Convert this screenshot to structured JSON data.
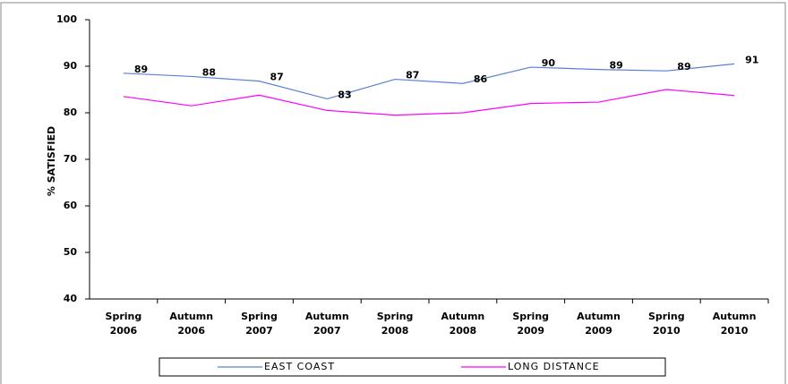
{
  "chart_data": {
    "type": "line",
    "y_label": "% SATISFIED",
    "categories": [
      "Spring 2006",
      "Autumn 2006",
      "Spring 2007",
      "Autumn 2007",
      "Spring 2008",
      "Autumn 2008",
      "Spring 2009",
      "Autumn 2009",
      "Spring 2010",
      "Autumn 2010"
    ],
    "series": [
      {
        "name": "EAST COAST",
        "color": "#5a7fd4",
        "values": [
          88.5,
          87.8,
          86.8,
          83,
          87.2,
          86.3,
          89.8,
          89.3,
          89,
          90.5
        ],
        "value_labels": [
          "89",
          "88",
          "87",
          "83",
          "87",
          "86",
          "90",
          "89",
          "89",
          "91"
        ]
      },
      {
        "name": "LONG DISTANCE",
        "color": "#ff00ff",
        "values": [
          83.5,
          81.5,
          83.8,
          80.5,
          79.5,
          80,
          82,
          82.3,
          85,
          83.7
        ]
      }
    ],
    "ylim": [
      40,
      100
    ],
    "yticks": [
      40,
      50,
      60,
      70,
      80,
      90,
      100
    ],
    "grid": false,
    "legend": "bottom"
  }
}
